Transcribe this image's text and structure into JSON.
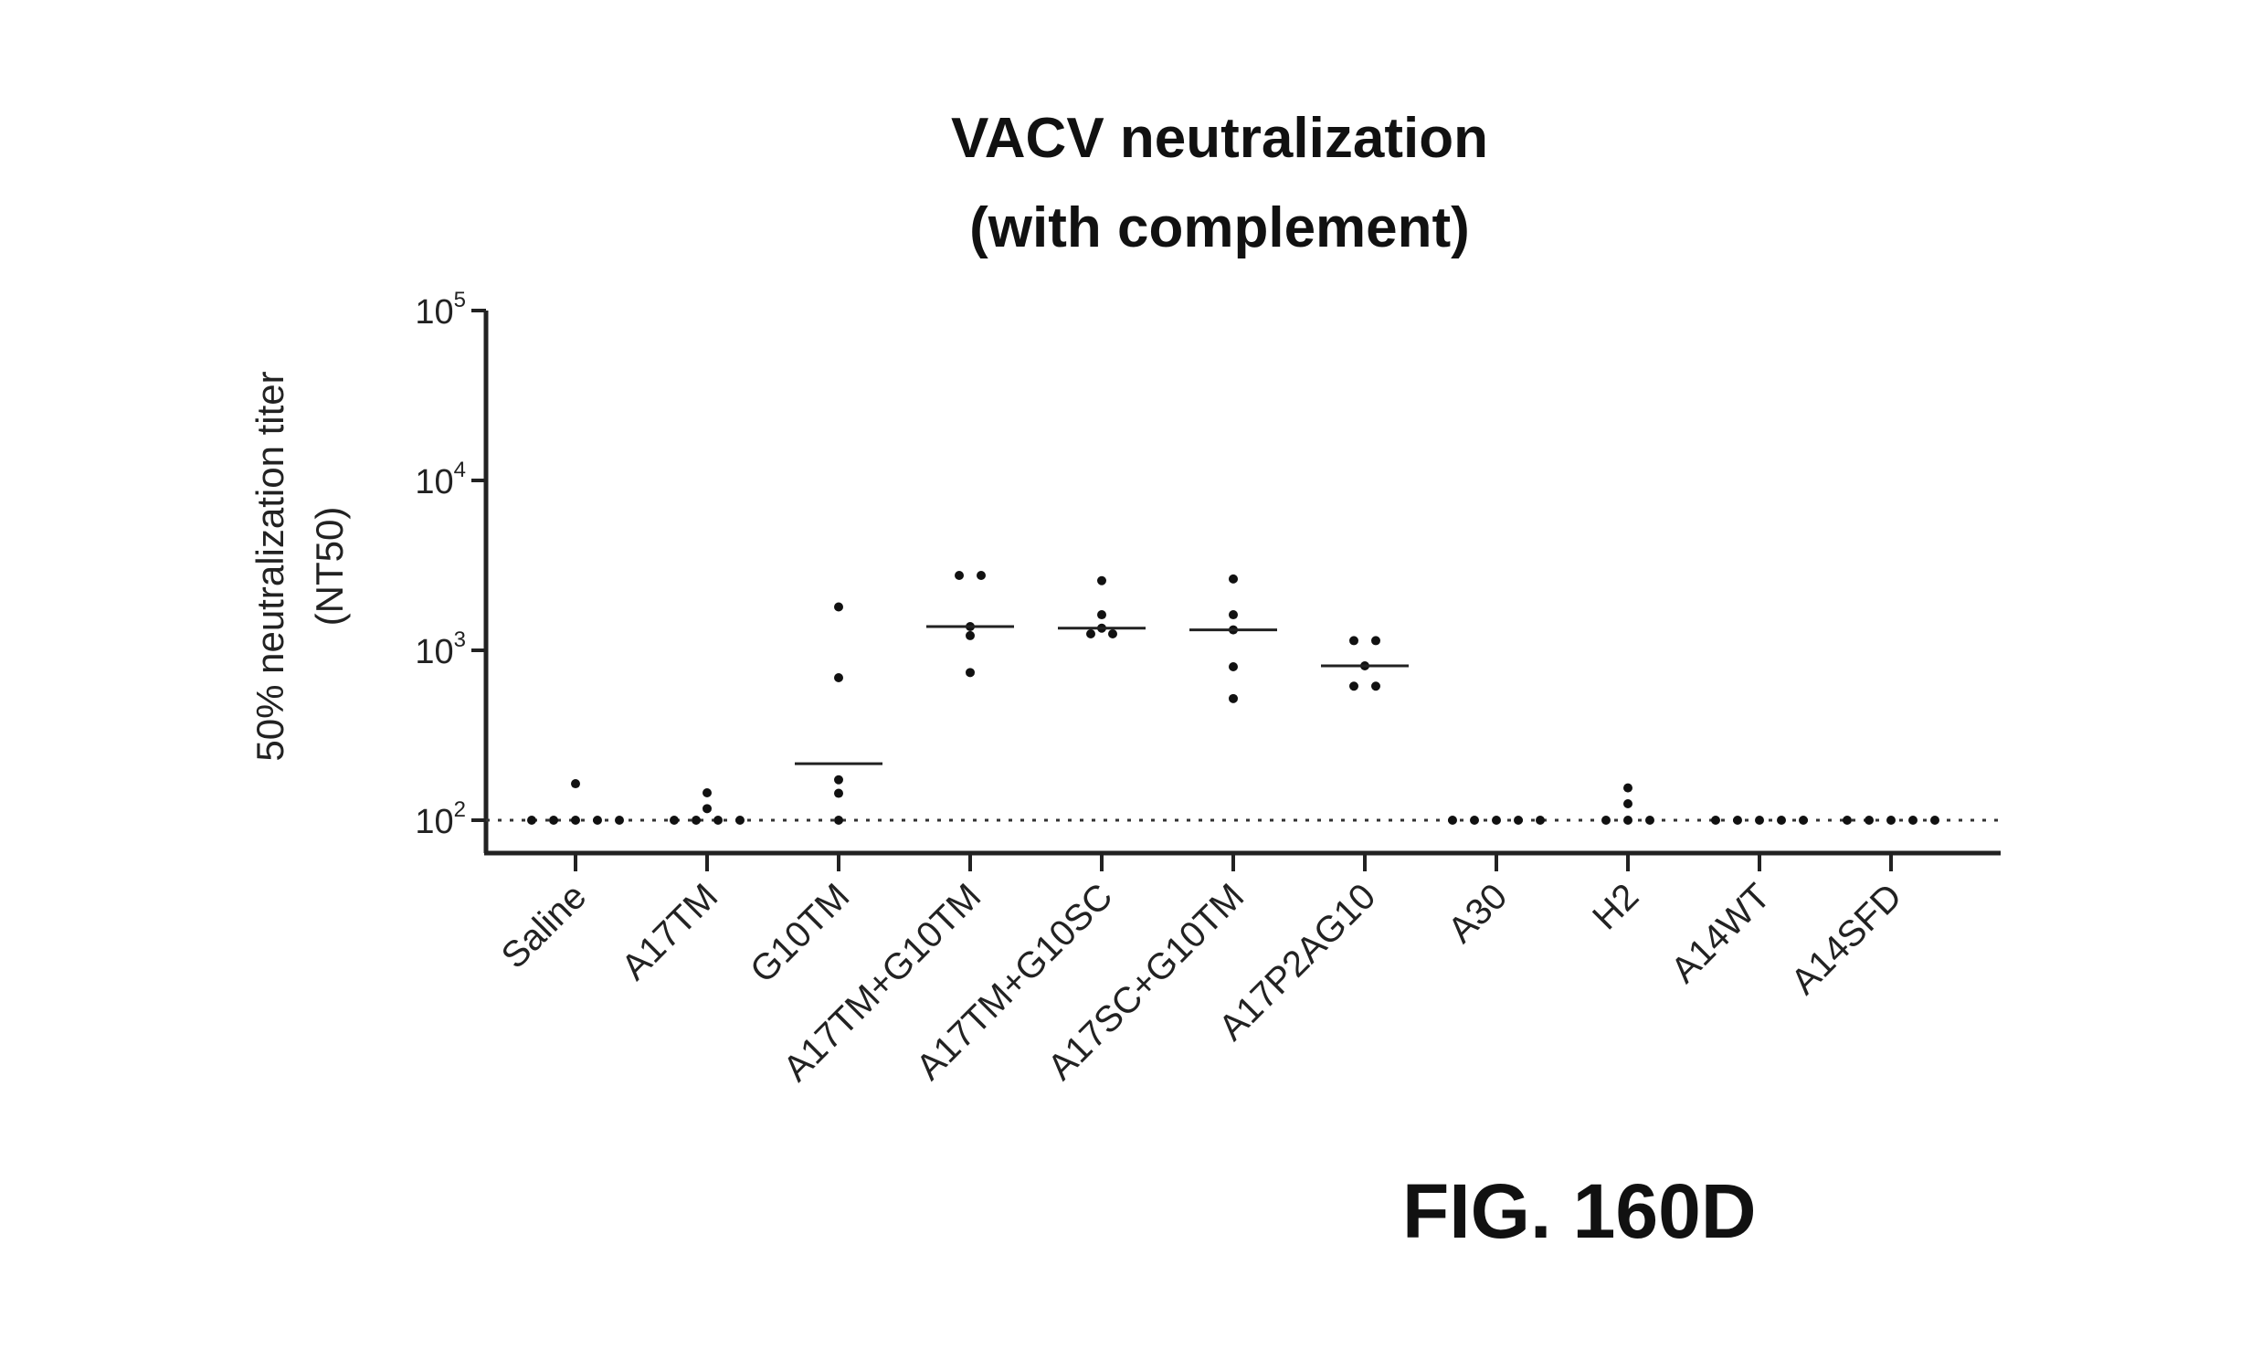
{
  "chart_data": {
    "type": "scatter",
    "title": [
      "VACV neutralization",
      "(with complement)"
    ],
    "ylabel": [
      "50% neutralization titer",
      "(NT50)"
    ],
    "ylabel_parts": [
      {
        "t": "(NT"
      },
      {
        "t": "50",
        "sub": true
      },
      {
        "t": ")"
      }
    ],
    "yscale": "log",
    "ylim": [
      100,
      100000
    ],
    "yticks": [
      {
        "base": "10",
        "exp": "2",
        "value": 100
      },
      {
        "base": "10",
        "exp": "3",
        "value": 1000
      },
      {
        "base": "10",
        "exp": "4",
        "value": 10000
      },
      {
        "base": "10",
        "exp": "5",
        "value": 100000
      }
    ],
    "reference_line": {
      "value": 100,
      "style": "dotted"
    },
    "categories": [
      {
        "label": "Saline",
        "parts": [
          {
            "t": "Saline"
          }
        ],
        "points": [
          164,
          100,
          100,
          100,
          100,
          100
        ],
        "median": 100
      },
      {
        "label": "A17TM",
        "parts": [
          {
            "t": "A17"
          },
          {
            "t": "TM",
            "sub": true
          }
        ],
        "points": [
          145,
          117,
          100,
          100,
          100,
          100
        ],
        "median": 100
      },
      {
        "label": "G10TM",
        "parts": [
          {
            "t": "G10"
          },
          {
            "t": "TM",
            "sub": true
          }
        ],
        "points": [
          1800,
          690,
          173,
          144,
          100
        ],
        "median": 215
      },
      {
        "label": "A17TM+G10TM",
        "parts": [
          {
            "t": "A17"
          },
          {
            "t": "TM",
            "sub": true
          },
          {
            "t": "+G10"
          },
          {
            "t": "TM",
            "sub": true
          }
        ],
        "points": [
          2760,
          2760,
          1380,
          1220,
          740
        ],
        "median": 1380
      },
      {
        "label": "A17TM+G10SC",
        "parts": [
          {
            "t": "A17"
          },
          {
            "t": "TM",
            "sub": true
          },
          {
            "t": "+G10"
          },
          {
            "t": "SC",
            "sub": true
          }
        ],
        "points": [
          2570,
          1620,
          1350,
          1250,
          1250
        ],
        "median": 1350
      },
      {
        "label": "A17SC+G10TM",
        "parts": [
          {
            "t": "A17"
          },
          {
            "t": "SC",
            "sub": true
          },
          {
            "t": "+G10"
          },
          {
            "t": "TM",
            "sub": true
          }
        ],
        "points": [
          2630,
          1620,
          1320,
          800,
          520
        ],
        "median": 1320
      },
      {
        "label": "A17P2AG10",
        "parts": [
          {
            "t": "A17"
          },
          {
            "t": "P2A",
            "sub": true
          },
          {
            "t": "G10"
          }
        ],
        "points": [
          1140,
          1140,
          810,
          615,
          615
        ],
        "median": 810
      },
      {
        "label": "A30",
        "parts": [
          {
            "t": "A30"
          }
        ],
        "points": [
          100,
          100,
          100,
          100,
          100
        ],
        "median": 100
      },
      {
        "label": "H2",
        "parts": [
          {
            "t": "H2"
          }
        ],
        "points": [
          155,
          125,
          100,
          100,
          100
        ],
        "median": 100
      },
      {
        "label": "A14WT",
        "parts": [
          {
            "t": "A14"
          },
          {
            "t": "WT",
            "sub": true
          }
        ],
        "points": [
          100,
          100,
          100,
          100,
          100
        ],
        "median": 100
      },
      {
        "label": "A14SFD",
        "parts": [
          {
            "t": "A14"
          },
          {
            "t": "SFD",
            "sub": true
          }
        ],
        "points": [
          100,
          100,
          100,
          100,
          100
        ],
        "median": 100
      }
    ],
    "grid": false
  },
  "figure_label": "FIG. 160D"
}
